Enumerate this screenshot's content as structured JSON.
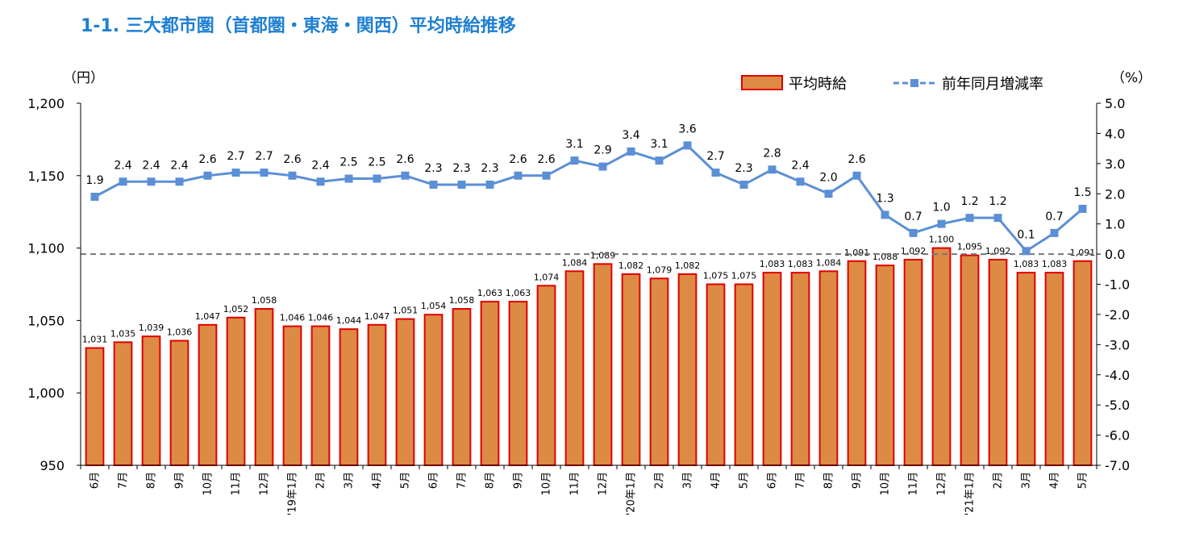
{
  "title": "1-1. 三大都市圏（首都圏・東海・関西）平均時給推移",
  "left_unit": "（円）",
  "right_unit": "（%）",
  "legend": {
    "bar_label": "平均時給",
    "line_label": "前年同月増減率"
  },
  "colors": {
    "bar_fill": "#dd8a45",
    "bar_stroke": "#e00000",
    "line": "#5b8fd6",
    "marker": "#5b8fd6",
    "title": "#1f7fd1",
    "zero_line": "#777777"
  },
  "chart_data": {
    "type": "bar",
    "categories": [
      "6月",
      "7月",
      "8月",
      "9月",
      "10月",
      "11月",
      "12月",
      "'19年1月",
      "2月",
      "3月",
      "4月",
      "5月",
      "6月",
      "7月",
      "8月",
      "9月",
      "10月",
      "11月",
      "12月",
      "'20年1月",
      "2月",
      "3月",
      "4月",
      "5月",
      "6月",
      "7月",
      "8月",
      "9月",
      "10月",
      "11月",
      "12月",
      "'21年1月",
      "2月",
      "3月",
      "4月",
      "5月"
    ],
    "series": [
      {
        "name": "平均時給",
        "type": "bar",
        "axis": "left",
        "values": [
          1031,
          1035,
          1039,
          1036,
          1047,
          1052,
          1058,
          1046,
          1046,
          1044,
          1047,
          1051,
          1054,
          1058,
          1063,
          1063,
          1074,
          1084,
          1089,
          1082,
          1079,
          1082,
          1075,
          1075,
          1083,
          1083,
          1084,
          1091,
          1088,
          1092,
          1100,
          1095,
          1092,
          1083,
          1083,
          1091
        ],
        "labels": [
          "1,031",
          "1,035",
          "1,039",
          "1,036",
          "1,047",
          "1,052",
          "1,058",
          "1,046",
          "1,046",
          "1,044",
          "1,047",
          "1,051",
          "1,054",
          "1,058",
          "1,063",
          "1,063",
          "1,074",
          "1,084",
          "1,089",
          "1,082",
          "1,079",
          "1,082",
          "1,075",
          "1,075",
          "1,083",
          "1,083",
          "1,084",
          "1,091",
          "1,088",
          "1,092",
          "1,100",
          "1,095",
          "1,092",
          "1,083",
          "1,083",
          "1,091"
        ]
      },
      {
        "name": "前年同月増減率",
        "type": "line",
        "axis": "right",
        "values": [
          1.9,
          2.4,
          2.4,
          2.4,
          2.6,
          2.7,
          2.7,
          2.6,
          2.4,
          2.5,
          2.5,
          2.6,
          2.3,
          2.3,
          2.3,
          2.6,
          2.6,
          3.1,
          2.9,
          3.4,
          3.1,
          3.6,
          2.7,
          2.3,
          2.8,
          2.4,
          2.0,
          2.6,
          1.3,
          0.7,
          1.0,
          1.2,
          1.2,
          0.1,
          0.7,
          1.5
        ],
        "labels": [
          "1.9",
          "2.4",
          "2.4",
          "2.4",
          "2.6",
          "2.7",
          "2.7",
          "2.6",
          "2.4",
          "2.5",
          "2.5",
          "2.6",
          "2.3",
          "2.3",
          "2.3",
          "2.6",
          "2.6",
          "3.1",
          "2.9",
          "3.4",
          "3.1",
          "3.6",
          "2.7",
          "2.3",
          "2.8",
          "2.4",
          "2.0",
          "2.6",
          "1.3",
          "0.7",
          "1.0",
          "1.2",
          "1.2",
          "0.1",
          "0.7",
          "1.5"
        ]
      }
    ],
    "left_axis": {
      "ylim": [
        950,
        1200
      ],
      "ticks": [
        "950",
        "1,000",
        "1,050",
        "1,100",
        "1,150",
        "1,200"
      ]
    },
    "right_axis": {
      "ylim": [
        -7.0,
        5.0
      ],
      "ticks": [
        "-7.0",
        "-6.0",
        "-5.0",
        "-4.0",
        "-3.0",
        "-2.0",
        "-1.0",
        "0.0",
        "1.0",
        "2.0",
        "3.0",
        "4.0",
        "5.0"
      ]
    },
    "grid": false,
    "legend_position": "top-right"
  }
}
